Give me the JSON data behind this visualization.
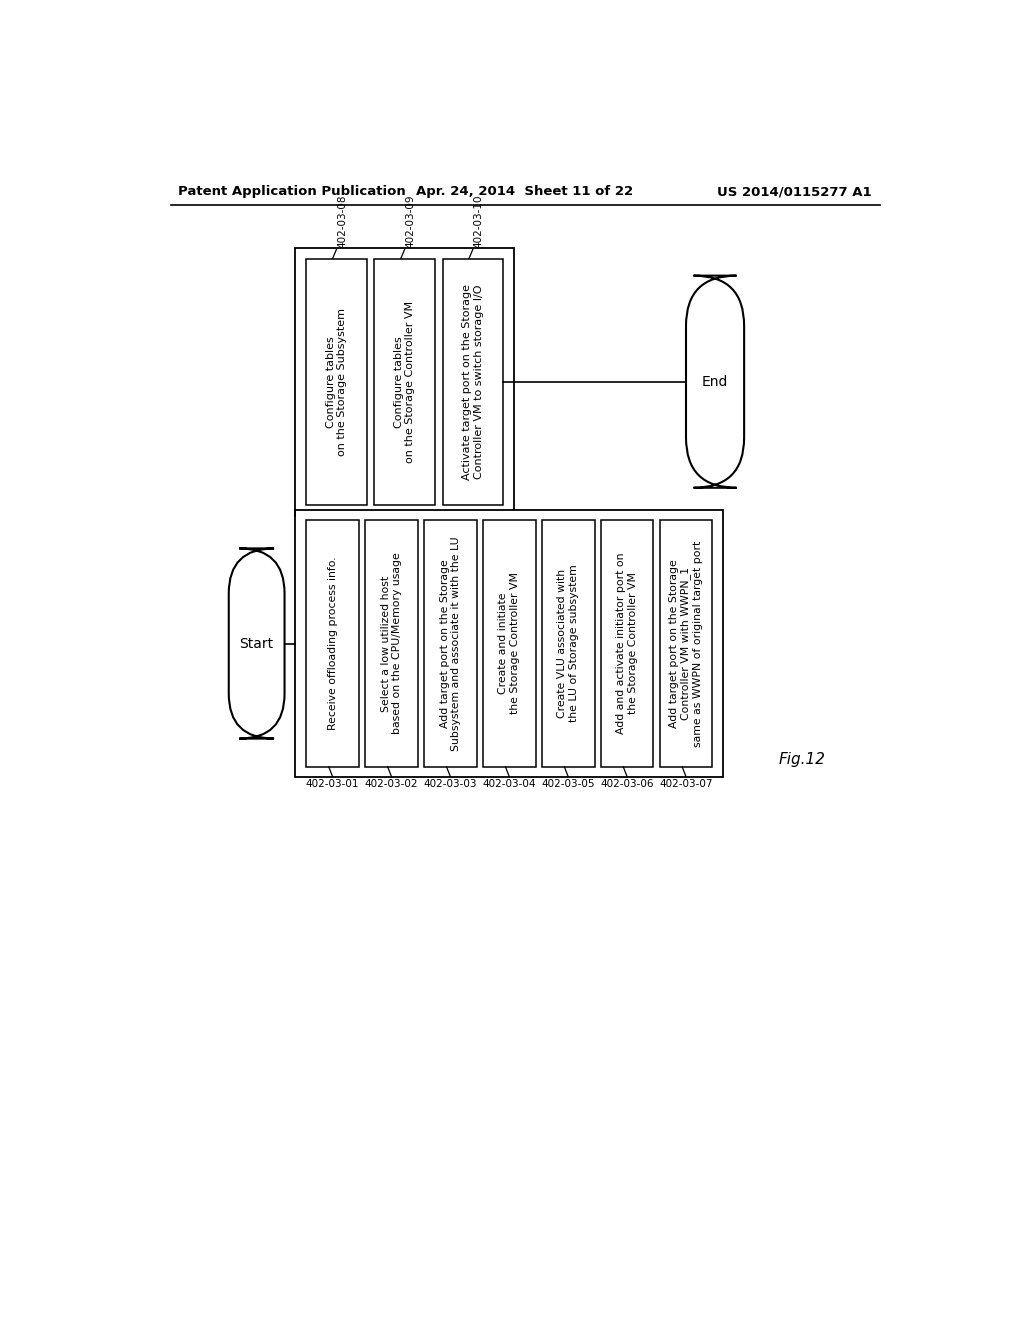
{
  "header_left": "Patent Application Publication",
  "header_center": "Apr. 24, 2014  Sheet 11 of 22",
  "header_right": "US 2014/0115277 A1",
  "fig_label": "Fig.12",
  "bg_color": "#ffffff",
  "top_boxes": [
    {
      "label": "402-03-08",
      "text": "Configure tables\non the Storage Subsystem"
    },
    {
      "label": "402-03-09",
      "text": "Configure tables\non the Storage Controller VM"
    },
    {
      "label": "402-03-10",
      "text": "Activate target port on the Storage\nController VM to switch storage I/O"
    }
  ],
  "bottom_boxes": [
    {
      "label": "402-03-01",
      "text": "Receive offloading process info."
    },
    {
      "label": "402-03-02",
      "text": "Select a low utilized host\nbased on the CPU/Memory usage"
    },
    {
      "label": "402-03-03",
      "text": "Add target port on the Storage\nSubsystem and associate it with the LU"
    },
    {
      "label": "402-03-04",
      "text": "Create and initiate\nthe Storage Controller VM"
    },
    {
      "label": "402-03-05",
      "text": "Create VLU associated with\nthe LU of Storage subsystem"
    },
    {
      "label": "402-03-06",
      "text": "Add and activate initiator port on\nthe Storage Controller VM"
    },
    {
      "label": "402-03-07",
      "text": "Add target port on the Storage\nController VM with WWPN_1\nsame as WWPN of original target port"
    }
  ],
  "start_label": "Start",
  "end_label": "End"
}
